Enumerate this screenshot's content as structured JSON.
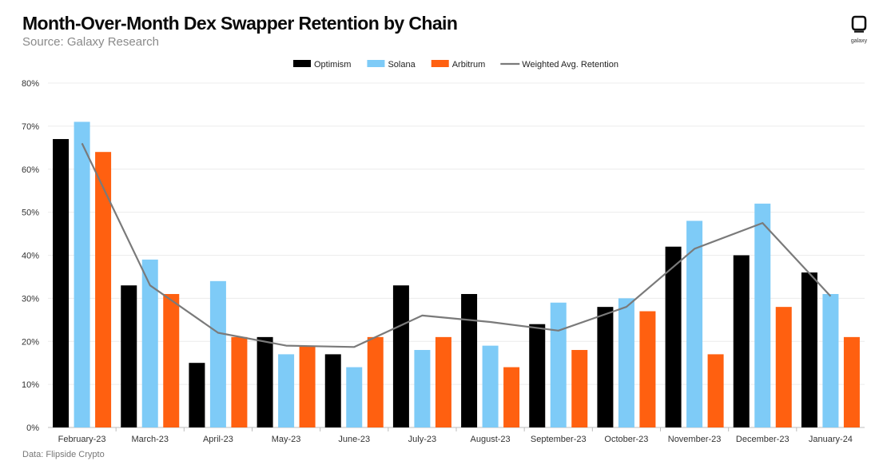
{
  "header": {
    "title": "Month-Over-Month Dex Swapper Retention by Chain",
    "subtitle": "Source: Galaxy Research",
    "logo_text": "galaxy"
  },
  "footer": {
    "note": "Data: Flipside Crypto"
  },
  "colors": {
    "optimism": "#000000",
    "solana": "#7ecbf7",
    "arbitrum": "#ff6010",
    "weighted": "#7a7a7a"
  },
  "chart_data": {
    "type": "bar",
    "title": "Month-Over-Month Dex Swapper Retention by Chain",
    "subtitle": "Source: Galaxy Research",
    "xlabel": "",
    "ylabel": "",
    "ylim": [
      0,
      80
    ],
    "y_unit": "%",
    "yticks": [
      "0%",
      "10%",
      "20%",
      "30%",
      "40%",
      "50%",
      "60%",
      "70%",
      "80%"
    ],
    "grid": true,
    "legend_position": "top",
    "categories": [
      "February-23",
      "March-23",
      "April-23",
      "May-23",
      "June-23",
      "July-23",
      "August-23",
      "September-23",
      "October-23",
      "November-23",
      "December-23",
      "January-24"
    ],
    "series": [
      {
        "name": "Optimism",
        "type": "bar",
        "color": "#000000",
        "values": [
          67,
          33,
          15,
          21,
          17,
          33,
          31,
          24,
          28,
          42,
          40,
          36
        ]
      },
      {
        "name": "Solana",
        "type": "bar",
        "color": "#7ecbf7",
        "values": [
          71,
          39,
          34,
          17,
          14,
          18,
          19,
          29,
          30,
          48,
          52,
          31
        ]
      },
      {
        "name": "Arbitrum",
        "type": "bar",
        "color": "#ff6010",
        "values": [
          64,
          31,
          21,
          19,
          21,
          21,
          14,
          18,
          27,
          17,
          28,
          21
        ]
      },
      {
        "name": "Weighted Avg. Retention",
        "type": "line",
        "color": "#7a7a7a",
        "values": [
          66,
          33,
          22,
          19,
          18.7,
          26,
          24.5,
          22.5,
          28,
          41.5,
          47.5,
          30.5
        ]
      }
    ]
  }
}
